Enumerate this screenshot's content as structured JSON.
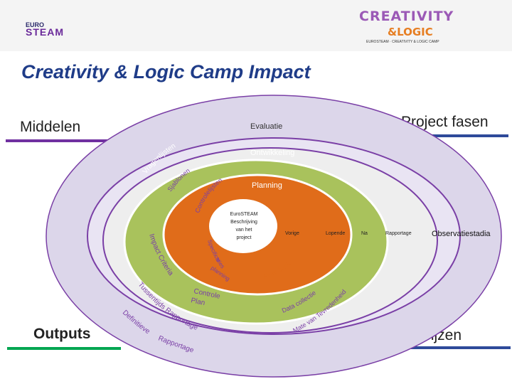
{
  "header": {
    "logo_left": {
      "line1": "EURO",
      "line2": "STEAM"
    },
    "logo_right": {
      "line1": "CREATIVITY",
      "line2": "&LOGIC",
      "line3": "EUROSTEAM · CREATIVITY & LOGIC CAMP"
    }
  },
  "title": "Creativity & Logic Camp Impact",
  "corners": {
    "top_left": "Middelen",
    "top_right": "Project fasen",
    "bottom_left": "Outputs",
    "bottom_right": "Bewijzen"
  },
  "rings": {
    "evaluatie": "Evaluatie",
    "ontwikkeling": "Ontwikkeling",
    "planning": "Planning",
    "center": [
      "EuroSTEAM",
      "Beschrijving",
      "van het",
      "project"
    ]
  },
  "resources": {
    "vragenlijsten": "Vragenlijsten",
    "sjablonen": "Sjablonen",
    "controlelijsten": "Controlelijsten"
  },
  "stages": [
    "Vorige",
    "Lopende",
    "Na",
    "Rapportage"
  ],
  "observatiestadia": "Observatiestadia",
  "outputs": {
    "impact_criteria": "Impact Criteria",
    "specificaties": [
      "Specificaties",
      "&",
      "planning"
    ],
    "controle_plan": [
      "Controle",
      "Plan"
    ],
    "tussentijds": "Tussentijds Rapportage",
    "definitief": [
      "Definitieve",
      "Rapportage"
    ]
  },
  "evidence": {
    "feedback": "Feed back",
    "data_collectie": "Data collectie",
    "tevredenheid": "Mate van Tevredenheid"
  },
  "colors": {
    "ring_outer": "#dcd6ea",
    "ring_ontwikkeling": "#7a3fa6",
    "ring_middle": "#a9c25c",
    "ring_planning": "#e06c1a",
    "title": "#1f3c88",
    "underline_middelen": "#7030a0",
    "underline_project": "#2e4a9a",
    "underline_outputs": "#00a651",
    "underline_bewijzen": "#2e4a9a"
  }
}
